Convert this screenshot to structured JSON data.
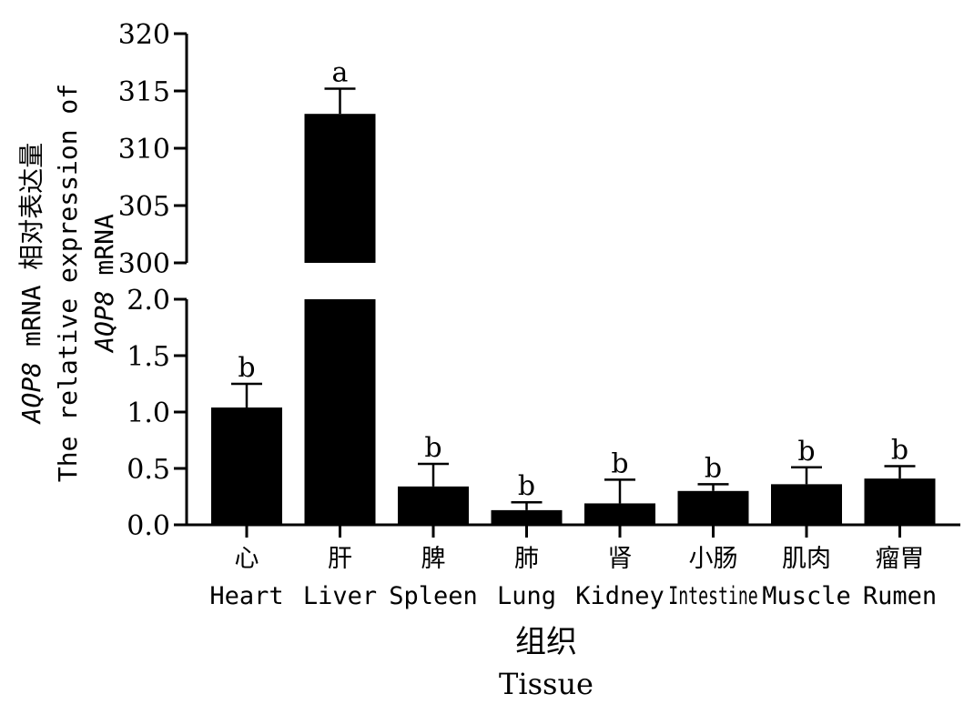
{
  "chart_data": {
    "type": "bar",
    "title": "",
    "categories": [
      {
        "cn": "心",
        "en": "Heart"
      },
      {
        "cn": "肝",
        "en": "Liver"
      },
      {
        "cn": "脾",
        "en": "Spleen"
      },
      {
        "cn": "肺",
        "en": "Lung"
      },
      {
        "cn": "肾",
        "en": "Kidney"
      },
      {
        "cn": "小肠",
        "en": "Intestine"
      },
      {
        "cn": "肌肉",
        "en": "Muscle"
      },
      {
        "cn": "瘤胃",
        "en": "Rumen"
      }
    ],
    "values": [
      1.04,
      313.0,
      0.34,
      0.13,
      0.19,
      0.3,
      0.36,
      0.41
    ],
    "errors": [
      0.21,
      2.2,
      0.2,
      0.07,
      0.21,
      0.06,
      0.15,
      0.11
    ],
    "significance": [
      "b",
      "a",
      "b",
      "b",
      "b",
      "b",
      "b",
      "b"
    ],
    "bar_color": "#000000",
    "xlabel": {
      "cn": "组织",
      "en": "Tissue"
    },
    "ylabel": {
      "line1_italic": "AQP8",
      "line1_rest": " mRNA 相对表达量",
      "line2": "The relative expression of",
      "line3_italic": "AQP8",
      "line3_rest": " mRNA"
    },
    "axis_break": true,
    "lower_segment": {
      "ylim": [
        0,
        2.0
      ],
      "ticks": [
        "0.0",
        "0.5",
        "1.0",
        "1.5",
        "2.0"
      ]
    },
    "upper_segment": {
      "ylim": [
        300,
        320
      ],
      "ticks": [
        "300",
        "305",
        "310",
        "315",
        "320"
      ]
    },
    "grid": false,
    "legend": "none"
  }
}
